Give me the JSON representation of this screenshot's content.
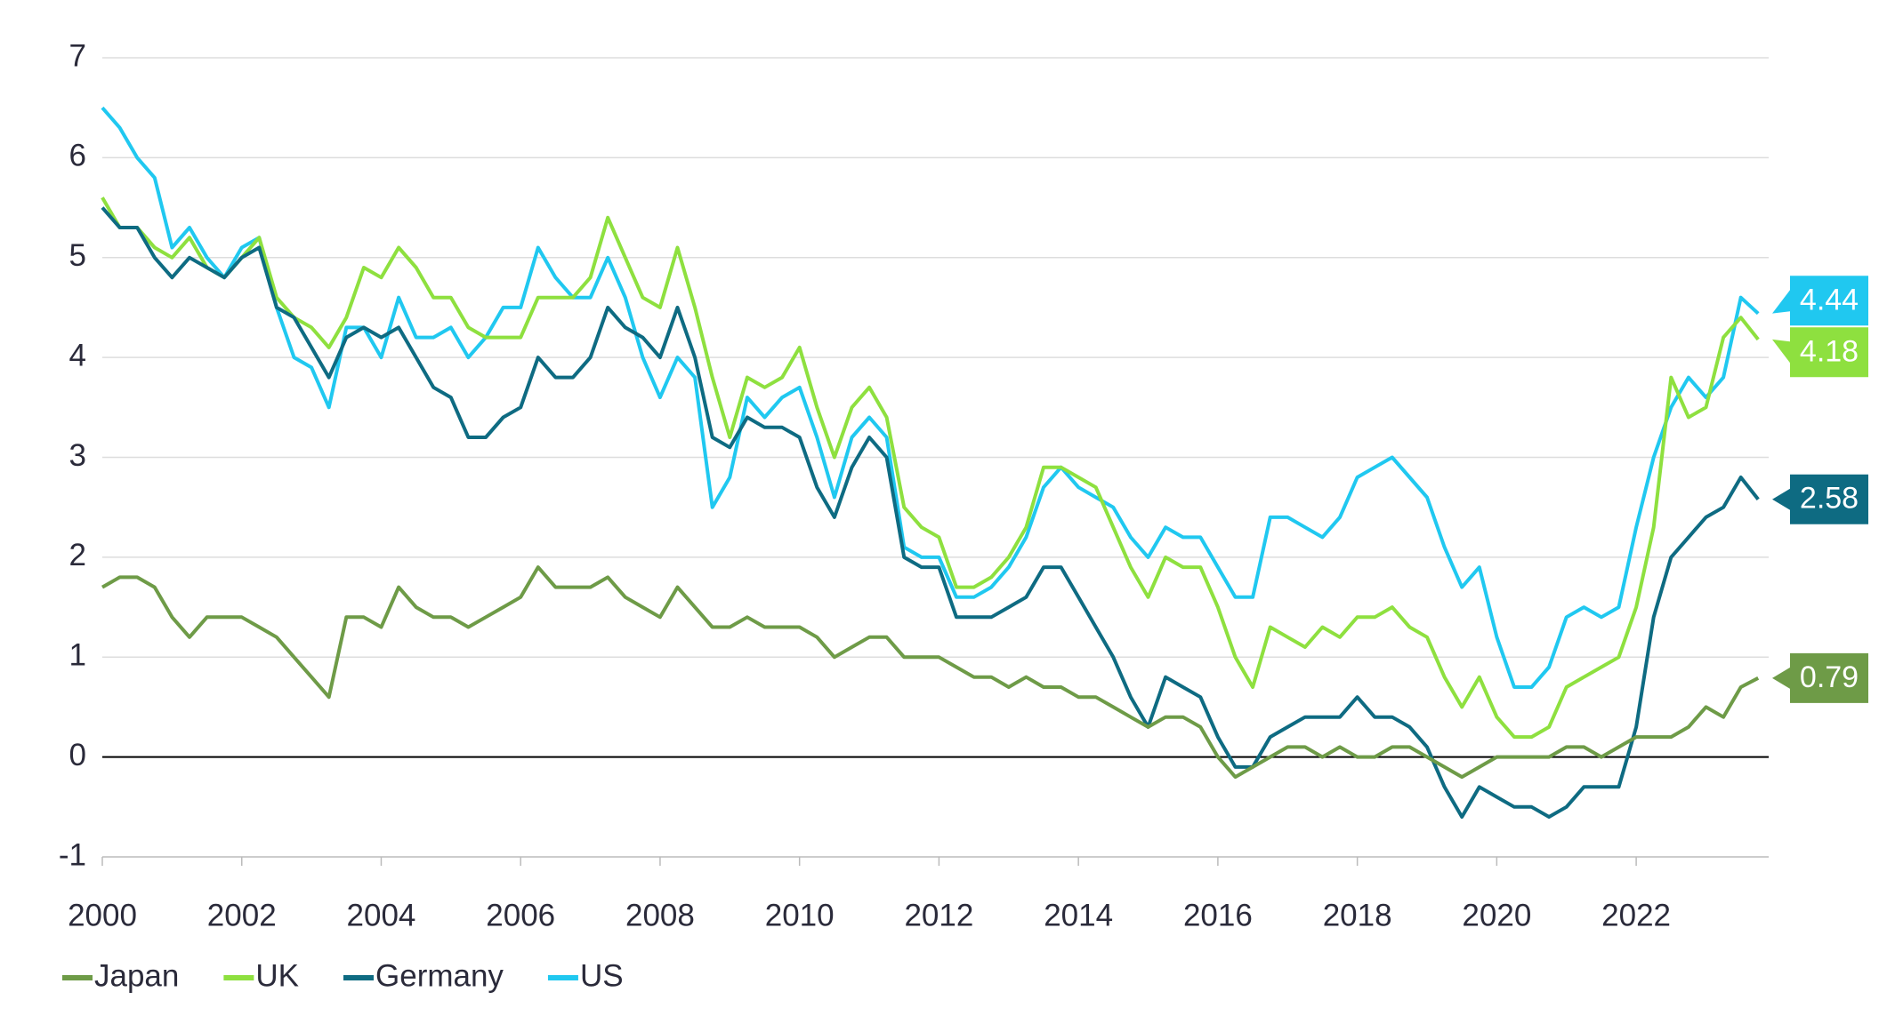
{
  "chart_data": {
    "type": "line",
    "x": [
      2000,
      2000.25,
      2000.5,
      2000.75,
      2001,
      2001.25,
      2001.5,
      2001.75,
      2002,
      2002.25,
      2002.5,
      2002.75,
      2003,
      2003.25,
      2003.5,
      2003.75,
      2004,
      2004.25,
      2004.5,
      2004.75,
      2005,
      2005.25,
      2005.5,
      2005.75,
      2006,
      2006.25,
      2006.5,
      2006.75,
      2007,
      2007.25,
      2007.5,
      2007.75,
      2008,
      2008.25,
      2008.5,
      2008.75,
      2009,
      2009.25,
      2009.5,
      2009.75,
      2010,
      2010.25,
      2010.5,
      2010.75,
      2011,
      2011.25,
      2011.5,
      2011.75,
      2012,
      2012.25,
      2012.5,
      2012.75,
      2013,
      2013.25,
      2013.5,
      2013.75,
      2014,
      2014.25,
      2014.5,
      2014.75,
      2015,
      2015.25,
      2015.5,
      2015.75,
      2016,
      2016.25,
      2016.5,
      2016.75,
      2017,
      2017.25,
      2017.5,
      2017.75,
      2018,
      2018.25,
      2018.5,
      2018.75,
      2019,
      2019.25,
      2019.5,
      2019.75,
      2020,
      2020.25,
      2020.5,
      2020.75,
      2021,
      2021.25,
      2021.5,
      2021.75,
      2022,
      2022.25,
      2022.5,
      2022.75,
      2023,
      2023.25,
      2023.5,
      2023.75
    ],
    "series": [
      {
        "name": "Japan",
        "color": "#6e9b47",
        "values": [
          1.7,
          1.8,
          1.8,
          1.7,
          1.4,
          1.2,
          1.4,
          1.4,
          1.4,
          1.3,
          1.2,
          1.0,
          0.8,
          0.6,
          1.4,
          1.4,
          1.3,
          1.7,
          1.5,
          1.4,
          1.4,
          1.3,
          1.4,
          1.5,
          1.6,
          1.9,
          1.7,
          1.7,
          1.7,
          1.8,
          1.6,
          1.5,
          1.4,
          1.7,
          1.5,
          1.3,
          1.3,
          1.4,
          1.3,
          1.3,
          1.3,
          1.2,
          1.0,
          1.1,
          1.2,
          1.2,
          1.0,
          1.0,
          1.0,
          0.9,
          0.8,
          0.8,
          0.7,
          0.8,
          0.7,
          0.7,
          0.6,
          0.6,
          0.5,
          0.4,
          0.3,
          0.4,
          0.4,
          0.3,
          0.0,
          -0.2,
          -0.1,
          0.0,
          0.1,
          0.1,
          0.0,
          0.1,
          0.0,
          0.0,
          0.1,
          0.1,
          0.0,
          -0.1,
          -0.2,
          -0.1,
          0.0,
          0.0,
          0.0,
          0.0,
          0.1,
          0.1,
          0.0,
          0.1,
          0.2,
          0.2,
          0.2,
          0.3,
          0.5,
          0.4,
          0.7,
          0.79
        ]
      },
      {
        "name": "UK",
        "color": "#8ee03f",
        "values": [
          5.6,
          5.3,
          5.3,
          5.1,
          5.0,
          5.2,
          4.9,
          4.8,
          5.0,
          5.2,
          4.6,
          4.4,
          4.3,
          4.1,
          4.4,
          4.9,
          4.8,
          5.1,
          4.9,
          4.6,
          4.6,
          4.3,
          4.2,
          4.2,
          4.2,
          4.6,
          4.6,
          4.6,
          4.8,
          5.4,
          5.0,
          4.6,
          4.5,
          5.1,
          4.5,
          3.8,
          3.2,
          3.8,
          3.7,
          3.8,
          4.1,
          3.5,
          3.0,
          3.5,
          3.7,
          3.4,
          2.5,
          2.3,
          2.2,
          1.7,
          1.7,
          1.8,
          2.0,
          2.3,
          2.9,
          2.9,
          2.8,
          2.7,
          2.3,
          1.9,
          1.6,
          2.0,
          1.9,
          1.9,
          1.5,
          1.0,
          0.7,
          1.3,
          1.2,
          1.1,
          1.3,
          1.2,
          1.4,
          1.4,
          1.5,
          1.3,
          1.2,
          0.8,
          0.5,
          0.8,
          0.4,
          0.2,
          0.2,
          0.3,
          0.7,
          0.8,
          0.9,
          1.0,
          1.5,
          2.3,
          3.8,
          3.4,
          3.5,
          4.2,
          4.4,
          4.18
        ]
      },
      {
        "name": "Germany",
        "color": "#0e6b82",
        "values": [
          5.5,
          5.3,
          5.3,
          5.0,
          4.8,
          5.0,
          4.9,
          4.8,
          5.0,
          5.1,
          4.5,
          4.4,
          4.1,
          3.8,
          4.2,
          4.3,
          4.2,
          4.3,
          4.0,
          3.7,
          3.6,
          3.2,
          3.2,
          3.4,
          3.5,
          4.0,
          3.8,
          3.8,
          4.0,
          4.5,
          4.3,
          4.2,
          4.0,
          4.5,
          4.0,
          3.2,
          3.1,
          3.4,
          3.3,
          3.3,
          3.2,
          2.7,
          2.4,
          2.9,
          3.2,
          3.0,
          2.0,
          1.9,
          1.9,
          1.4,
          1.4,
          1.4,
          1.5,
          1.6,
          1.9,
          1.9,
          1.6,
          1.3,
          1.0,
          0.6,
          0.3,
          0.8,
          0.7,
          0.6,
          0.2,
          -0.1,
          -0.1,
          0.2,
          0.3,
          0.4,
          0.4,
          0.4,
          0.6,
          0.4,
          0.4,
          0.3,
          0.1,
          -0.3,
          -0.6,
          -0.3,
          -0.4,
          -0.5,
          -0.5,
          -0.6,
          -0.5,
          -0.3,
          -0.3,
          -0.3,
          0.3,
          1.4,
          2.0,
          2.2,
          2.4,
          2.5,
          2.8,
          2.58
        ]
      },
      {
        "name": "US",
        "color": "#20c8f0",
        "values": [
          6.5,
          6.3,
          6.0,
          5.8,
          5.1,
          5.3,
          5.0,
          4.8,
          5.1,
          5.2,
          4.5,
          4.0,
          3.9,
          3.5,
          4.3,
          4.3,
          4.0,
          4.6,
          4.2,
          4.2,
          4.3,
          4.0,
          4.2,
          4.5,
          4.5,
          5.1,
          4.8,
          4.6,
          4.6,
          5.0,
          4.6,
          4.0,
          3.6,
          4.0,
          3.8,
          2.5,
          2.8,
          3.6,
          3.4,
          3.6,
          3.7,
          3.2,
          2.6,
          3.2,
          3.4,
          3.2,
          2.1,
          2.0,
          2.0,
          1.6,
          1.6,
          1.7,
          1.9,
          2.2,
          2.7,
          2.9,
          2.7,
          2.6,
          2.5,
          2.2,
          2.0,
          2.3,
          2.2,
          2.2,
          1.9,
          1.6,
          1.6,
          2.4,
          2.4,
          2.3,
          2.2,
          2.4,
          2.8,
          2.9,
          3.0,
          2.8,
          2.6,
          2.1,
          1.7,
          1.9,
          1.2,
          0.7,
          0.7,
          0.9,
          1.4,
          1.5,
          1.4,
          1.5,
          2.3,
          3.0,
          3.5,
          3.8,
          3.6,
          3.8,
          4.6,
          4.44
        ]
      }
    ],
    "xlim": [
      2000,
      2023.9
    ],
    "xticks": [
      2000,
      2002,
      2004,
      2006,
      2008,
      2010,
      2012,
      2014,
      2016,
      2018,
      2020,
      2022
    ],
    "ylim": [
      -1,
      7
    ],
    "yticks": [
      -1,
      0,
      1,
      2,
      3,
      4,
      5,
      6,
      7
    ],
    "grid": true,
    "legend": "bottom-left"
  }
}
